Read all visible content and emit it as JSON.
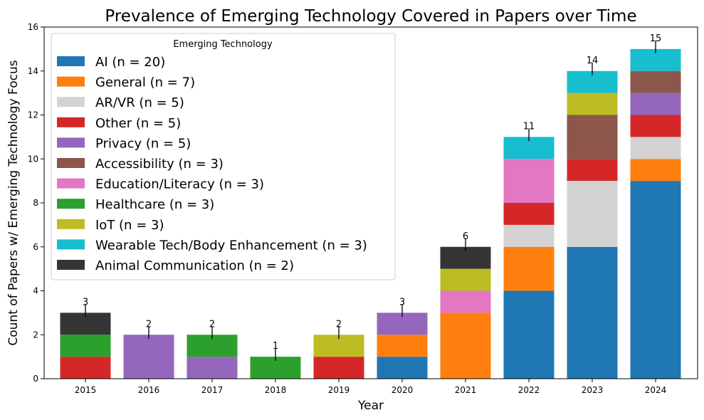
{
  "chart_data": {
    "type": "bar",
    "stacked": true,
    "title": "Prevalence of Emerging Technology Covered in Papers over Time",
    "xlabel": "Year",
    "ylabel": "Count of Papers w/ Emerging Technology Focus",
    "ylim": [
      0,
      16
    ],
    "yticks": [
      0,
      2,
      4,
      6,
      8,
      10,
      12,
      14,
      16
    ],
    "categories": [
      "2015",
      "2016",
      "2017",
      "2018",
      "2019",
      "2020",
      "2021",
      "2022",
      "2023",
      "2024"
    ],
    "totals": [
      3,
      2,
      2,
      1,
      2,
      3,
      6,
      11,
      14,
      15
    ],
    "legend_title": "Emerging Technology",
    "legend_position": "upper-left",
    "grid": false,
    "series": [
      {
        "name": "AI (n = 20)",
        "color": "#1f77b4",
        "values": [
          0,
          0,
          0,
          0,
          0,
          1,
          0,
          4,
          6,
          9
        ]
      },
      {
        "name": "General (n = 7)",
        "color": "#ff7f0e",
        "values": [
          0,
          0,
          0,
          0,
          0,
          1,
          3,
          2,
          0,
          1
        ]
      },
      {
        "name": "AR/VR (n = 5)",
        "color": "#d3d3d3",
        "values": [
          0,
          0,
          0,
          0,
          0,
          0,
          0,
          1,
          3,
          1
        ]
      },
      {
        "name": "Other (n = 5)",
        "color": "#d62728",
        "values": [
          1,
          0,
          0,
          0,
          1,
          0,
          0,
          1,
          1,
          1
        ]
      },
      {
        "name": "Privacy (n = 5)",
        "color": "#9467bd",
        "values": [
          0,
          2,
          1,
          0,
          0,
          1,
          0,
          0,
          0,
          1
        ]
      },
      {
        "name": "Accessibility (n = 3)",
        "color": "#8c564b",
        "values": [
          0,
          0,
          0,
          0,
          0,
          0,
          0,
          0,
          2,
          1
        ]
      },
      {
        "name": "Education/Literacy (n = 3)",
        "color": "#e377c2",
        "values": [
          0,
          0,
          0,
          0,
          0,
          0,
          1,
          2,
          0,
          0
        ]
      },
      {
        "name": "Healthcare (n = 3)",
        "color": "#2ca02c",
        "values": [
          1,
          0,
          1,
          1,
          0,
          0,
          0,
          0,
          0,
          0
        ]
      },
      {
        "name": "IoT (n = 3)",
        "color": "#bcbd22",
        "values": [
          0,
          0,
          0,
          0,
          1,
          0,
          1,
          0,
          1,
          0
        ]
      },
      {
        "name": "Wearable Tech/Body Enhancement (n = 3)",
        "color": "#17becf",
        "values": [
          0,
          0,
          0,
          0,
          0,
          0,
          0,
          1,
          1,
          1
        ]
      },
      {
        "name": "Animal Communication (n = 2)",
        "color": "#353535",
        "values": [
          1,
          0,
          0,
          0,
          0,
          0,
          1,
          0,
          0,
          0
        ]
      }
    ]
  }
}
